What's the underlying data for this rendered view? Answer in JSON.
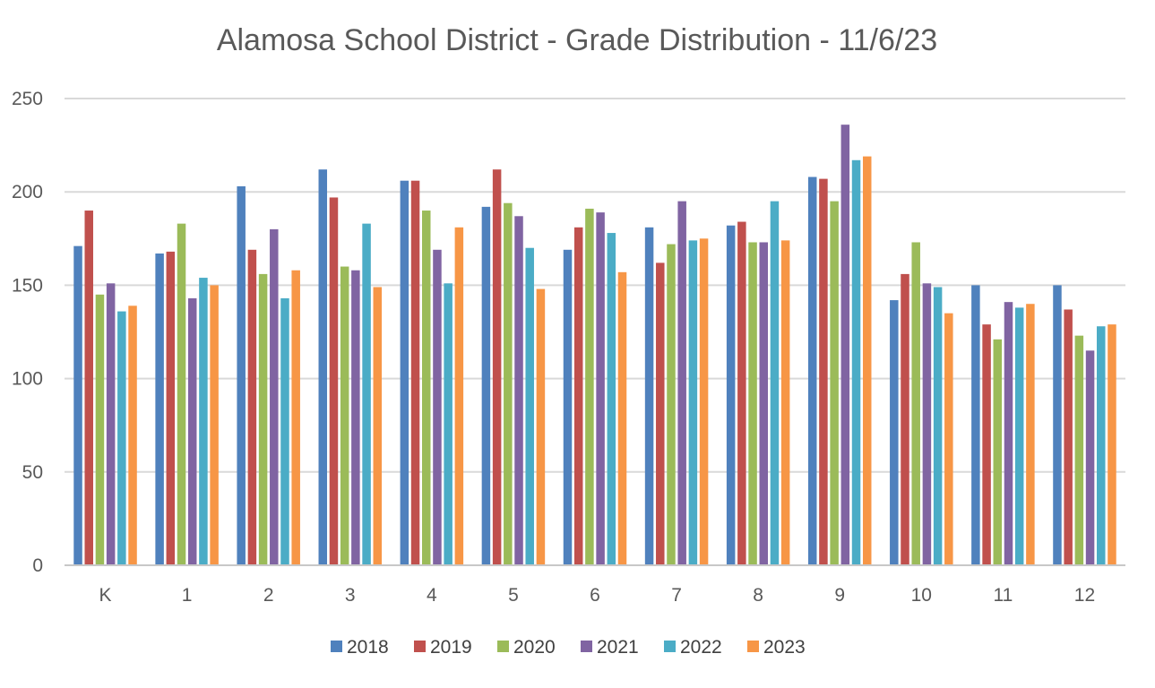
{
  "chart_data": {
    "type": "bar",
    "title": "Alamosa School District - Grade Distribution - 11/6/23",
    "xlabel": "",
    "ylabel": "",
    "ylim": [
      0,
      250
    ],
    "yticks": [
      0,
      50,
      100,
      150,
      200,
      250
    ],
    "grid": true,
    "legend_position": "bottom",
    "categories": [
      "K",
      "1",
      "2",
      "3",
      "4",
      "5",
      "6",
      "7",
      "8",
      "9",
      "10",
      "11",
      "12"
    ],
    "series": [
      {
        "name": "2018",
        "color": "#4F81BD",
        "values": [
          171,
          167,
          203,
          212,
          206,
          192,
          169,
          181,
          182,
          208,
          142,
          150,
          150
        ]
      },
      {
        "name": "2019",
        "color": "#C0504D",
        "values": [
          190,
          168,
          169,
          197,
          206,
          212,
          181,
          162,
          184,
          207,
          156,
          129,
          137
        ]
      },
      {
        "name": "2020",
        "color": "#9BBB59",
        "values": [
          145,
          183,
          156,
          160,
          190,
          194,
          191,
          172,
          173,
          195,
          173,
          121,
          123
        ]
      },
      {
        "name": "2021",
        "color": "#8064A2",
        "values": [
          151,
          143,
          180,
          158,
          169,
          187,
          189,
          195,
          173,
          236,
          151,
          141,
          115
        ]
      },
      {
        "name": "2022",
        "color": "#4BACC6",
        "values": [
          136,
          154,
          143,
          183,
          151,
          170,
          178,
          174,
          195,
          217,
          149,
          138,
          128
        ]
      },
      {
        "name": "2023",
        "color": "#F79646",
        "values": [
          139,
          150,
          158,
          149,
          181,
          148,
          157,
          175,
          174,
          219,
          135,
          140,
          129
        ]
      }
    ]
  }
}
